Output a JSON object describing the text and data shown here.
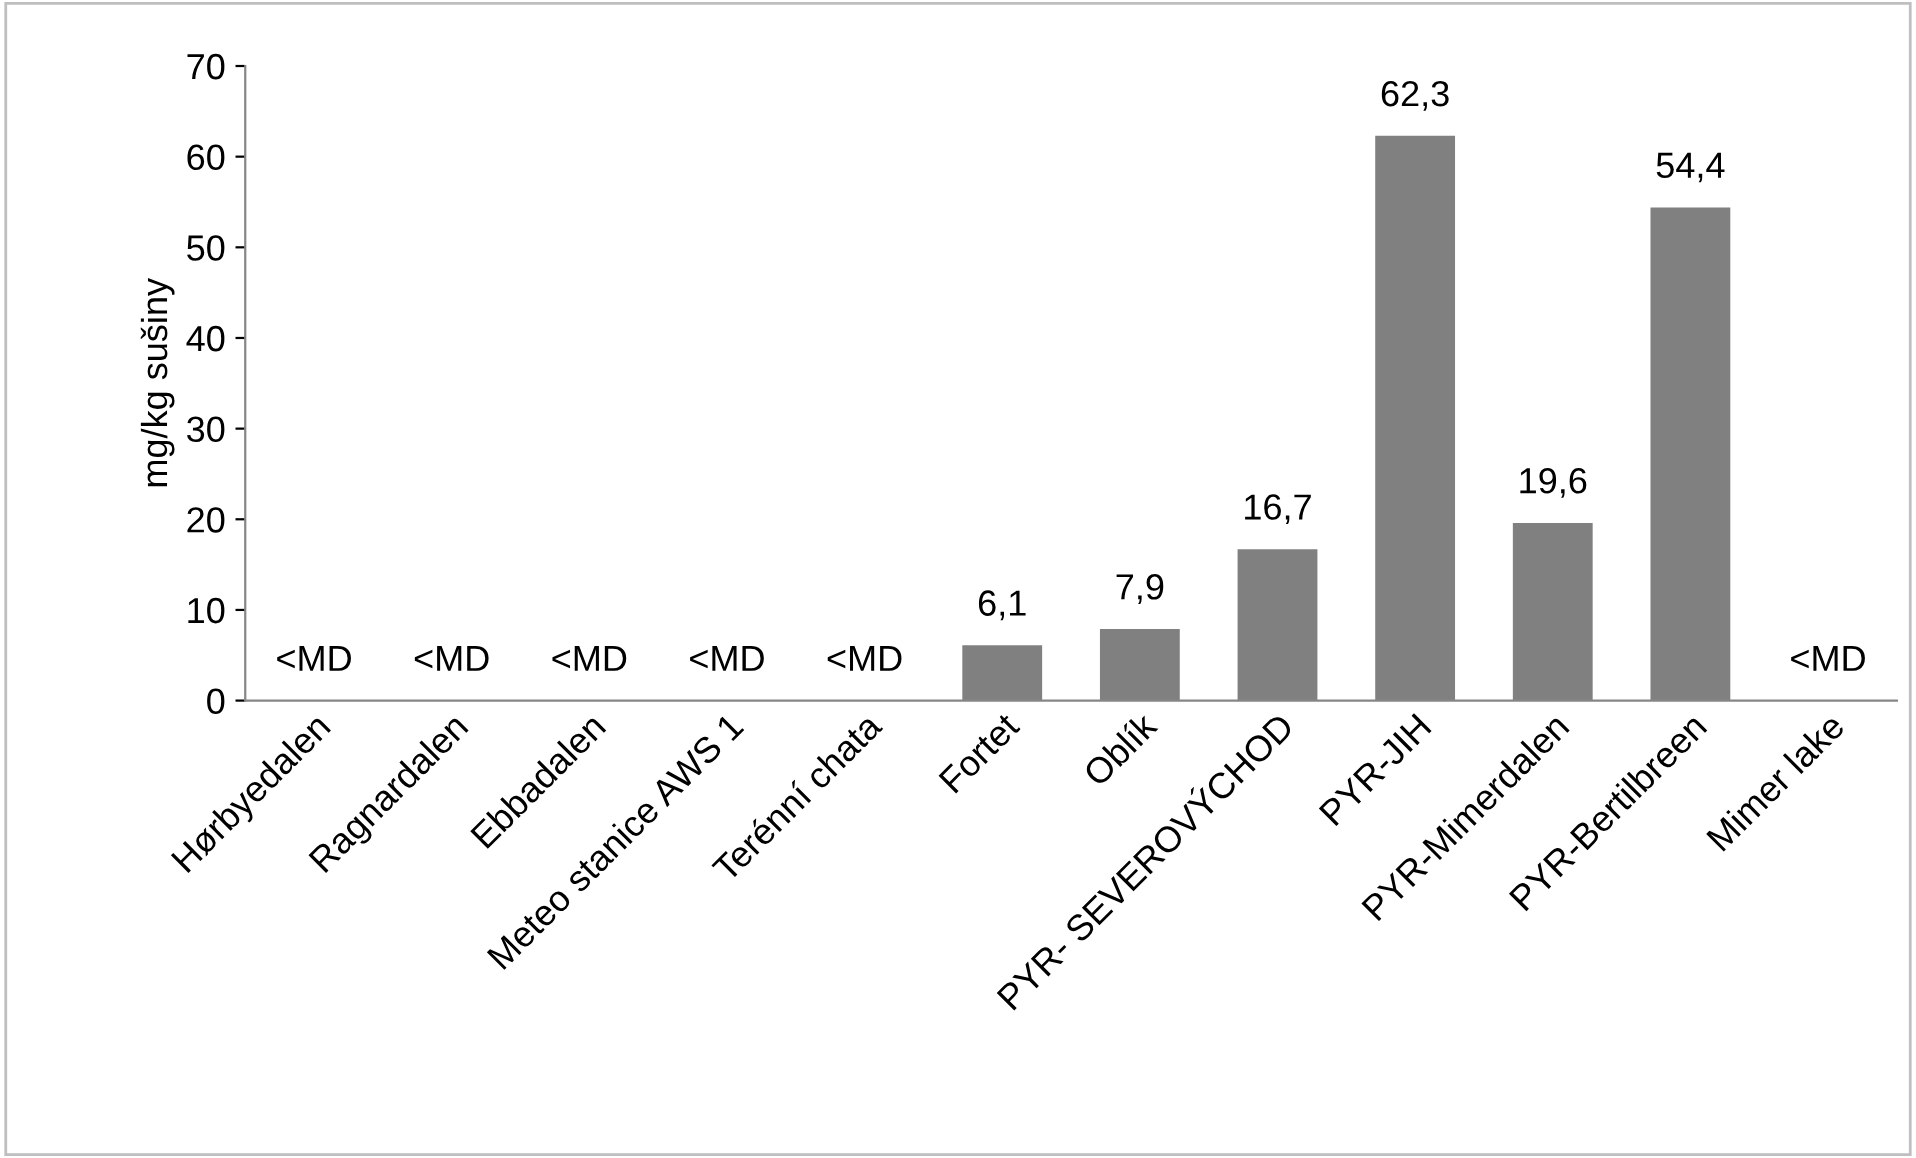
{
  "chart_data": {
    "type": "bar",
    "ylabel": "mg/kg sušiny",
    "categories": [
      "Hørbyedalen",
      "Ragnardalen",
      "Ebbadalen",
      "Meteo stanice AWS 1",
      "Terénní chata",
      "Fortet",
      "Oblík",
      "PYR- SEVEROVÝCHOD",
      "PYR-JIH",
      "PYR-Mimerdalen",
      "PYR-Bertilbreen",
      "Mimer lake"
    ],
    "values": [
      null,
      null,
      null,
      null,
      null,
      6.1,
      7.9,
      16.7,
      62.3,
      19.6,
      54.4,
      null
    ],
    "value_labels": [
      "<MD",
      "<MD",
      "<MD",
      "<MD",
      "<MD",
      "6,1",
      "7,9",
      "16,7",
      "62,3",
      "19,6",
      "54,4",
      "<MD"
    ],
    "color": "#808080",
    "ylim": [
      0,
      70
    ],
    "yticks": [
      0,
      10,
      20,
      30,
      40,
      50,
      60,
      70
    ],
    "grid": false
  }
}
